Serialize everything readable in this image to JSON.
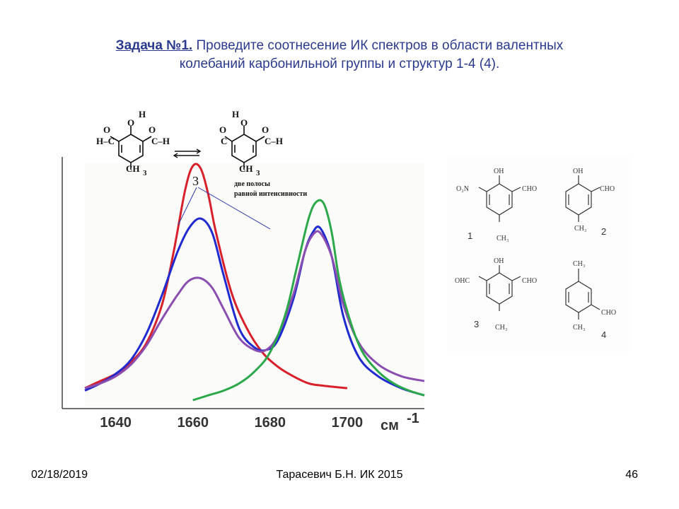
{
  "slide": {
    "title_task": "Задача №1.",
    "title_rest_line1": " Проведите соотнесение ИК спектров в области валентных",
    "title_line2": "колебаний карбонильной группы и структур 1-4 (4).",
    "footer_date": "02/18/2019",
    "footer_author": "Тарасевич Б.Н.  ИК 2015",
    "footer_page": "46"
  },
  "spectrum_annotation": {
    "label": "3",
    "note_line1": "две полосы",
    "note_line2": "равной интенсивности",
    "tautomer_methyl_left": "CH",
    "tautomer_methyl_right": "CH",
    "tautomer_subscript": "3"
  },
  "structures": [
    {
      "number": "1",
      "top": "OH",
      "left": "O₂N",
      "right": "CHO",
      "bottom": "CH₃"
    },
    {
      "number": "2",
      "top": "OH",
      "right": "CHO",
      "bottom": "CH₃"
    },
    {
      "number": "3",
      "top": "OH",
      "left": "OHC",
      "right": "CHO",
      "bottom": "CH₃"
    },
    {
      "number": "4",
      "top": "CH₃",
      "right": "CHO",
      "bottom": "CH₃"
    }
  ],
  "chart_data": {
    "type": "line",
    "xlabel": "см",
    "xlabel_superscript": "-1",
    "x_ticks": [
      1640,
      1660,
      1680,
      1700
    ],
    "xlim": [
      1632,
      1720
    ],
    "ylim": [
      0,
      1
    ],
    "grid": false,
    "series": [
      {
        "color": "#d81f2a",
        "x": [
          1632,
          1636,
          1640,
          1644,
          1648,
          1652,
          1655,
          1658,
          1660,
          1662,
          1664,
          1666,
          1670,
          1674,
          1678,
          1682,
          1686,
          1690,
          1694,
          1700
        ],
        "y": [
          0.05,
          0.08,
          0.11,
          0.16,
          0.24,
          0.4,
          0.62,
          0.88,
          0.98,
          0.97,
          0.86,
          0.7,
          0.45,
          0.3,
          0.2,
          0.14,
          0.1,
          0.07,
          0.06,
          0.05
        ]
      },
      {
        "color": "#1f2bd1",
        "x": [
          1632,
          1636,
          1640,
          1644,
          1648,
          1652,
          1656,
          1659,
          1662,
          1665,
          1668,
          1672,
          1676,
          1679,
          1682,
          1686,
          1689,
          1691,
          1693,
          1696,
          1699,
          1703,
          1708,
          1714,
          1720
        ],
        "y": [
          0.04,
          0.07,
          0.11,
          0.17,
          0.28,
          0.44,
          0.62,
          0.72,
          0.76,
          0.7,
          0.52,
          0.3,
          0.22,
          0.21,
          0.25,
          0.42,
          0.62,
          0.7,
          0.72,
          0.6,
          0.35,
          0.18,
          0.1,
          0.05,
          0.02
        ]
      },
      {
        "color": "#8a4db0",
        "x": [
          1632,
          1636,
          1640,
          1644,
          1648,
          1652,
          1656,
          1659,
          1662,
          1665,
          1668,
          1672,
          1676,
          1679,
          1682,
          1686,
          1689,
          1691,
          1693,
          1696,
          1699,
          1703,
          1708,
          1714,
          1720
        ],
        "y": [
          0.05,
          0.07,
          0.1,
          0.15,
          0.23,
          0.34,
          0.44,
          0.5,
          0.51,
          0.47,
          0.38,
          0.26,
          0.21,
          0.21,
          0.27,
          0.44,
          0.62,
          0.69,
          0.7,
          0.6,
          0.4,
          0.24,
          0.15,
          0.1,
          0.08
        ]
      },
      {
        "color": "#2ba84a",
        "x": [
          1660,
          1664,
          1668,
          1672,
          1676,
          1680,
          1684,
          1687,
          1690,
          1692,
          1694,
          1696,
          1698,
          1701,
          1704,
          1708,
          1712,
          1716,
          1720
        ],
        "y": [
          0.0,
          0.02,
          0.04,
          0.07,
          0.12,
          0.2,
          0.36,
          0.56,
          0.76,
          0.83,
          0.82,
          0.7,
          0.5,
          0.32,
          0.2,
          0.12,
          0.07,
          0.04,
          0.02
        ]
      }
    ]
  }
}
